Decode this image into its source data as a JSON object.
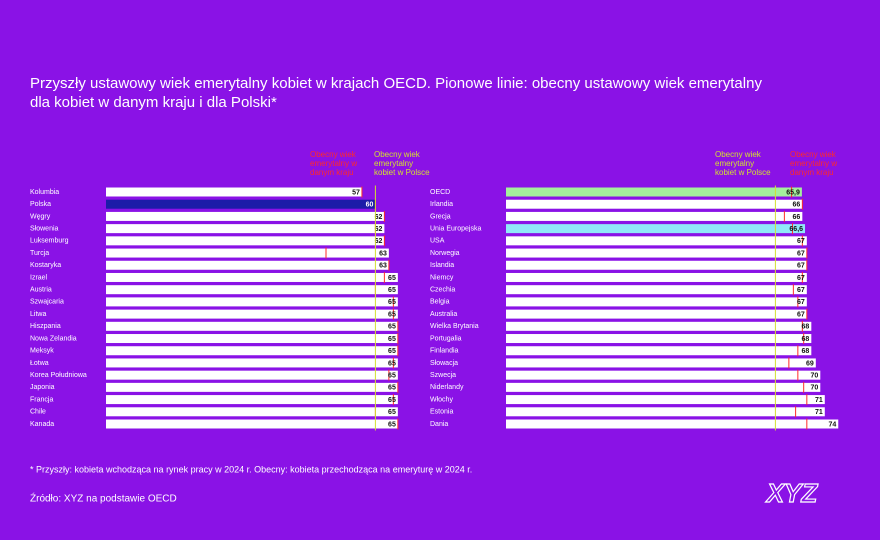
{
  "title": "Przyszły ustawowy wiek emerytalny kobiet w krajach OECD. Pionowe linie: obecny ustawowy wiek emerytalny dla kobiet w danym kraju i dla Polski*",
  "footnote": "* Przyszły: kobieta wchodząca na rynek pracy w 2024 r. Obecny: kobieta przechodząca na emeryturę w 2024 r.",
  "source": "Źródło: XYZ na podstawie OECD",
  "logo": "XYZ",
  "chart_data": [
    {
      "type": "bar",
      "orientation": "horizontal",
      "xlim": [
        0,
        75
      ],
      "categories": [
        "Kolumbia",
        "Polska",
        "Węgry",
        "Słowenia",
        "Luksemburg",
        "Turcja",
        "Kostaryka",
        "Izrael",
        "Austria",
        "Szwajcaria",
        "Litwa",
        "Hiszpania",
        "Nowa Zelandia",
        "Meksyk",
        "Łotwa",
        "Korea Południowa",
        "Japonia",
        "Francja",
        "Chile",
        "Kanada"
      ],
      "values": [
        57,
        60,
        62,
        62,
        62,
        63,
        63,
        65,
        65,
        65,
        65,
        65,
        65,
        65,
        65,
        65,
        65,
        65,
        65,
        65
      ],
      "colors": [
        "#ffffff",
        "#1c1ca8",
        "#ffffff",
        "#ffffff",
        "#ffffff",
        "#ffffff",
        "#ffffff",
        "#ffffff",
        "#ffffff",
        "#ffffff",
        "#ffffff",
        "#ffffff",
        "#ffffff",
        "#ffffff",
        "#ffffff",
        "#ffffff",
        "#ffffff",
        "#ffffff",
        "#ffffff",
        "#ffffff"
      ],
      "current": {
        "name": "Obecny wiek emerytalny w danym kraju",
        "color": "#ff2a2a",
        "values": [
          57,
          60,
          62,
          60,
          62,
          49,
          63,
          62,
          60,
          64,
          64,
          65,
          65,
          65,
          64,
          63,
          65,
          64,
          60,
          65
        ]
      },
      "poland": {
        "name": "Obecny wiek emerytalny kobiet w Polsce",
        "color": "#d4e030",
        "value": 60
      }
    },
    {
      "type": "bar",
      "orientation": "horizontal",
      "xlim": [
        0,
        75
      ],
      "categories": [
        "OECD",
        "Irlandia",
        "Grecja",
        "Unia Europejska",
        "USA",
        "Norwegia",
        "Islandia",
        "Niemcy",
        "Czechia",
        "Belgia",
        "Australia",
        "Wielka Brytania",
        "Portugalia",
        "Finlandia",
        "Słowacja",
        "Szwecja",
        "Niderlandy",
        "Włochy",
        "Estonia",
        "Dania"
      ],
      "values": [
        65.9,
        66,
        66,
        66.6,
        67,
        67,
        67,
        67,
        67,
        67,
        67,
        68,
        68,
        68,
        69,
        70,
        70,
        71,
        71,
        74
      ],
      "value_labels": [
        "65,9",
        "66",
        "66",
        "66,6",
        "67",
        "67",
        "67",
        "67",
        "67",
        "67",
        "67",
        "68",
        "68",
        "68",
        "69",
        "70",
        "70",
        "71",
        "71",
        "74"
      ],
      "colors": [
        "#a4f09c",
        "#ffffff",
        "#ffffff",
        "#90e8f8",
        "#ffffff",
        "#ffffff",
        "#ffffff",
        "#ffffff",
        "#ffffff",
        "#ffffff",
        "#ffffff",
        "#ffffff",
        "#ffffff",
        "#ffffff",
        "#ffffff",
        "#ffffff",
        "#ffffff",
        "#ffffff",
        "#ffffff",
        "#ffffff"
      ],
      "current": {
        "name": "Obecny wiek emerytalny w danym kraju",
        "color": "#ff2a2a",
        "values": [
          63.6,
          66,
          62,
          63.8,
          66,
          67,
          67,
          66,
          64,
          65,
          67,
          66,
          66.3,
          65,
          63,
          65,
          66.3,
          67,
          64.5,
          67
        ]
      },
      "poland": {
        "name": "Obecny wiek emerytalny kobiet w Polsce",
        "color": "#d4e030",
        "value": 60
      }
    }
  ]
}
